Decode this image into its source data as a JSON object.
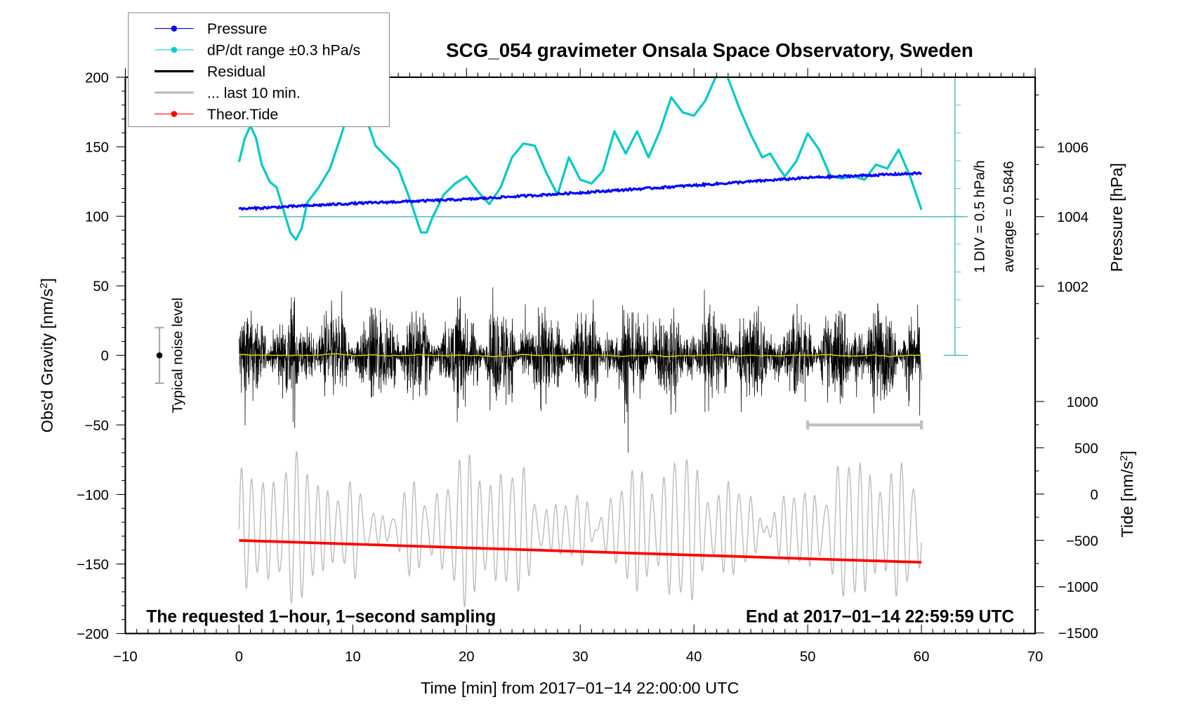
{
  "chart_data": {
    "type": "line",
    "title": "SCG_054 gravimeter Onsala Space Observatory, Sweden",
    "xlabel": "Time [min] from 2017−01−14 22:00:00 UTC",
    "ylabel": "Obs'd Gravity [nm/s²]",
    "ylabel_right_top": "Pressure [hPa]",
    "ylabel_right_bottom": "Tide [nm/s²]",
    "xlim": [
      -10,
      70
    ],
    "ylim": [
      -200,
      200
    ],
    "pressure_lim_labels": [
      1002,
      1004,
      1006
    ],
    "tide_ticks": [
      1000,
      500,
      0,
      -500,
      -1000,
      -1500
    ],
    "x_ticks": [
      -10,
      0,
      10,
      20,
      30,
      40,
      50,
      60,
      70
    ],
    "y_ticks": [
      200,
      150,
      100,
      50,
      0,
      -50,
      -100,
      -150,
      -200
    ],
    "x_tick_labels": [
      "−10",
      "0",
      "10",
      "20",
      "30",
      "40",
      "50",
      "60",
      "70"
    ],
    "y_tick_labels": [
      "200",
      "150",
      "100",
      "50",
      "0",
      "−50",
      "−100",
      "−150",
      "−200"
    ],
    "pressure_tick_labels": [
      "1006",
      "1004",
      "1002"
    ],
    "tide_tick_labels": [
      "1000",
      "500",
      "0",
      "−500",
      "−1000",
      "−1500"
    ],
    "legend": {
      "placement": "top-left",
      "entries": [
        {
          "name": "Pressure",
          "color": "#0000ff",
          "marker": "dot"
        },
        {
          "name": "dP/dt range ±0.3 hPa/s",
          "color": "#00cccc",
          "marker": "dot"
        },
        {
          "name": "Residual",
          "color": "#000000",
          "marker": "line"
        },
        {
          "name": "... last 10 min.",
          "color": "#bbbbbb",
          "marker": "line"
        },
        {
          "name": "Theor.Tide",
          "color": "#ff0000",
          "marker": "dot"
        }
      ]
    },
    "annotations": {
      "left_bottom": "The requested 1−hour, 1−second sampling",
      "right_bottom": "End at 2017−01−14 22:59:59 UTC",
      "noise": "Typical noise level",
      "div": "1 DIV = 0.5 hPa/h",
      "average": "average = 0.5846"
    },
    "dpdt_scale": {
      "div_hPa_per_h": 0.5,
      "average": 0.5846
    },
    "series": [
      {
        "name": "Pressure",
        "unit": "hPa",
        "color": "#0000ff",
        "points": [
          [
            0,
            1004.22
          ],
          [
            10,
            1004.38
          ],
          [
            20,
            1004.5
          ],
          [
            30,
            1004.69
          ],
          [
            40,
            1004.9
          ],
          [
            50,
            1005.12
          ],
          [
            60,
            1005.25
          ]
        ]
      },
      {
        "name": "dP/dt range ±0.3 hPa/s",
        "unit": "hPa/h",
        "color": "#00c8c8",
        "points": [
          [
            0,
            1.57
          ],
          [
            0.5,
            1.99
          ],
          [
            1,
            2.22
          ],
          [
            1.5,
            1.99
          ],
          [
            2,
            1.52
          ],
          [
            2.7,
            1.21
          ],
          [
            3.3,
            1.11
          ],
          [
            4,
            0.64
          ],
          [
            4.5,
            0.3
          ],
          [
            5,
            0.17
          ],
          [
            5.5,
            0.37
          ],
          [
            6,
            0.84
          ],
          [
            7,
            1.11
          ],
          [
            8,
            1.45
          ],
          [
            9,
            2.06
          ],
          [
            9.5,
            2.4
          ],
          [
            10,
            2.6
          ],
          [
            11,
            2.46
          ],
          [
            12,
            1.86
          ],
          [
            13,
            1.65
          ],
          [
            14,
            1.45
          ],
          [
            15,
            0.91
          ],
          [
            16,
            0.3
          ],
          [
            16.5,
            0.3
          ],
          [
            17,
            0.57
          ],
          [
            18,
            0.98
          ],
          [
            19,
            1.18
          ],
          [
            20,
            1.31
          ],
          [
            21,
            1.04
          ],
          [
            22,
            0.81
          ],
          [
            23,
            1.11
          ],
          [
            24,
            1.65
          ],
          [
            25,
            1.9
          ],
          [
            26,
            1.86
          ],
          [
            27,
            1.38
          ],
          [
            28,
            0.98
          ],
          [
            29,
            1.65
          ],
          [
            30,
            1.25
          ],
          [
            31,
            1.18
          ],
          [
            32,
            1.41
          ],
          [
            33,
            2.12
          ],
          [
            34,
            1.72
          ],
          [
            35,
            2.12
          ],
          [
            36,
            1.65
          ],
          [
            37,
            2.12
          ],
          [
            38,
            2.73
          ],
          [
            39,
            2.46
          ],
          [
            40,
            2.4
          ],
          [
            41,
            2.67
          ],
          [
            42,
            3.14
          ],
          [
            42.5,
            3.34
          ],
          [
            43,
            3.07
          ],
          [
            44,
            2.53
          ],
          [
            45,
            2.06
          ],
          [
            46,
            1.65
          ],
          [
            46.7,
            1.72
          ],
          [
            47.5,
            1.45
          ],
          [
            48,
            1.31
          ],
          [
            49,
            1.58
          ],
          [
            50,
            2.08
          ],
          [
            51,
            1.79
          ],
          [
            52,
            1.31
          ],
          [
            53,
            1.27
          ],
          [
            54,
            1.31
          ],
          [
            55,
            1.25
          ],
          [
            56,
            1.52
          ],
          [
            57,
            1.45
          ],
          [
            58,
            1.79
          ],
          [
            59,
            1.31
          ],
          [
            60,
            0.71
          ]
        ]
      },
      {
        "name": "Residual",
        "unit": "nm/s²",
        "color": "#000000",
        "t_range": [
          0,
          60
        ],
        "typical_amplitude": 35,
        "peak_range": [
          -70,
          90
        ]
      },
      {
        "name": "... last 10 min.",
        "unit": "nm/s²",
        "color": "#bbbbbb",
        "t_range": [
          0,
          60
        ],
        "center": -125,
        "range": [
          -180,
          -65
        ]
      },
      {
        "name": "Theor.Tide",
        "unit": "nm/s²",
        "color": "#ff0000",
        "points": [
          [
            0,
            -500
          ],
          [
            30,
            -620
          ],
          [
            60,
            -737
          ]
        ]
      }
    ],
    "last_10min_marker": {
      "t_range": [
        50,
        60
      ],
      "y": -50,
      "color": "#c0c0c0"
    },
    "noise_bar": {
      "t": -7,
      "y_range": [
        -20,
        20
      ]
    },
    "grid": false
  }
}
